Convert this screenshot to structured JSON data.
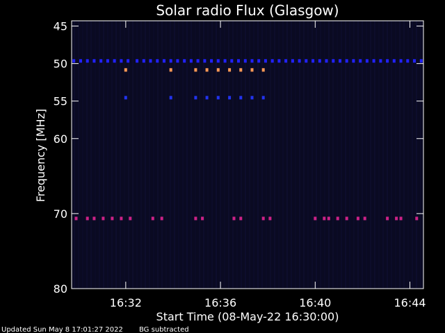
{
  "chart_data": {
    "type": "heatmap",
    "title": "Solar radio Flux (Glasgow)",
    "ylabel": "Frequency [MHz]",
    "xlabel": "Start Time (08-May-22 16:30:00)",
    "y_ticks": [
      45,
      50,
      55,
      60,
      70,
      80
    ],
    "x_ticks": [
      {
        "label": "16:32",
        "minutes": 2.4
      },
      {
        "label": "16:36",
        "minutes": 6.6
      },
      {
        "label": "16:40",
        "minutes": 10.8
      },
      {
        "label": "16:44",
        "minutes": 15.0
      }
    ],
    "x_range_minutes": [
      0,
      15.6
    ],
    "y_range_mhz": [
      44.3,
      80.0
    ],
    "background_color": "#0a0a22",
    "bands": [
      {
        "freq_mhz": 49.6,
        "color": "#2222ff",
        "times_min": [
          0.1,
          0.4,
          0.7,
          1.0,
          1.3,
          1.6,
          1.9,
          2.2,
          2.5,
          2.9,
          3.2,
          3.5,
          3.8,
          4.1,
          4.4,
          4.7,
          5.0,
          5.3,
          5.6,
          5.9,
          6.2,
          6.5,
          6.8,
          7.1,
          7.4,
          7.7,
          8.0,
          8.3,
          8.6,
          8.9,
          9.2,
          9.5,
          9.8,
          10.1,
          10.4,
          10.7,
          11.0,
          11.3,
          11.6,
          11.9,
          12.2,
          12.5,
          12.8,
          13.1,
          13.4,
          13.7,
          14.0,
          14.3,
          14.6,
          14.9,
          15.2,
          15.5
        ]
      },
      {
        "freq_mhz": 50.8,
        "color": "#ff9955",
        "times_min": [
          2.4,
          4.4,
          5.5,
          6.0,
          6.5,
          7.0,
          7.5,
          8.0,
          8.5
        ]
      },
      {
        "freq_mhz": 54.5,
        "color": "#2233ee",
        "times_min": [
          2.4,
          4.4,
          5.5,
          6.0,
          6.5,
          7.0,
          7.5,
          8.0,
          8.5
        ]
      },
      {
        "freq_mhz": 70.6,
        "color": "#cc2288",
        "times_min": [
          0.2,
          0.7,
          1.0,
          1.4,
          1.8,
          2.2,
          2.6,
          3.6,
          4.0,
          5.5,
          5.8,
          7.2,
          7.5,
          8.5,
          8.8,
          10.8,
          11.2,
          11.4,
          11.8,
          12.2,
          12.7,
          13.0,
          14.0,
          14.4,
          14.6,
          15.3
        ]
      }
    ]
  },
  "footer": {
    "updated": "Updated Sun May  8 17:01:27 2022",
    "note": "BG subtracted"
  }
}
